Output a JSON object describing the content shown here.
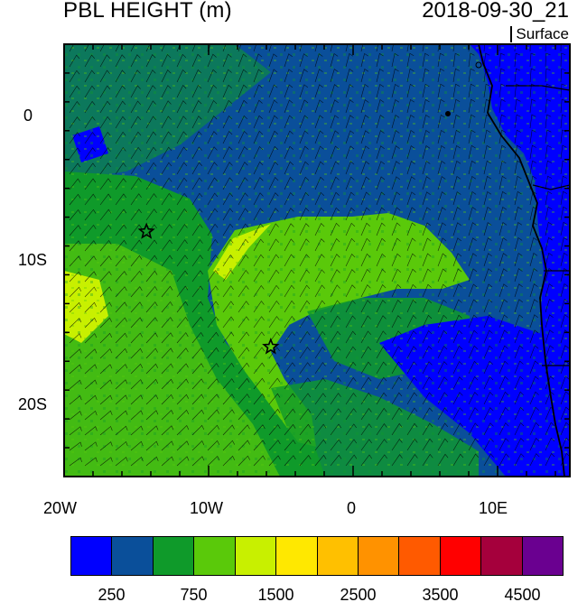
{
  "header": {
    "title": "PBL HEIGHT (m)",
    "timestamp": "2018-09-30_21",
    "level": "Surface"
  },
  "map": {
    "lon_range": [
      -20,
      15
    ],
    "lat_range": [
      -25,
      5
    ],
    "x_tick_labels": [
      "20W",
      "10W",
      "0",
      "10E"
    ],
    "y_tick_labels": [
      "0",
      "10S",
      "20S"
    ],
    "markers": [
      {
        "name": "star",
        "lon": -14.3,
        "lat": -8.0
      },
      {
        "name": "star",
        "lon": -5.7,
        "lat": -16.0
      }
    ],
    "wind_barbs": "southeasterly trade winds"
  },
  "colorbar": {
    "colors": [
      "#0000ff",
      "#0a4f9a",
      "#0f9a2a",
      "#5ac90a",
      "#c8f000",
      "#ffe800",
      "#ffc000",
      "#ff9200",
      "#ff5a00",
      "#ff0000",
      "#a5003c",
      "#6a0090"
    ],
    "labels": [
      "250",
      "750",
      "1500",
      "2500",
      "3500",
      "4500"
    ]
  }
}
